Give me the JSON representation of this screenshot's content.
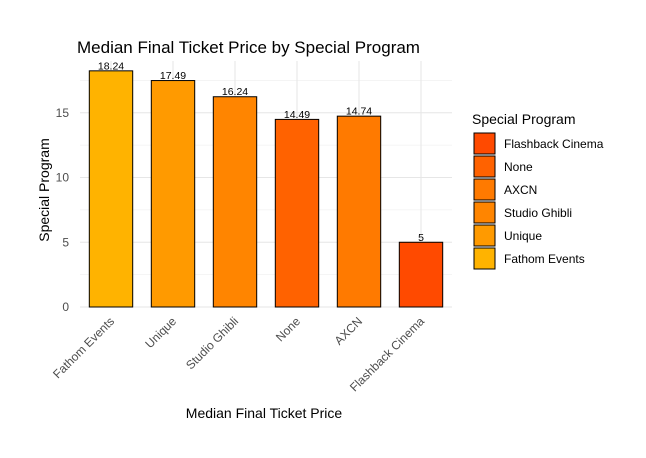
{
  "chart_data": {
    "type": "bar",
    "title": "Median Final Ticket Price by Special Program",
    "xlabel": "Median Final Ticket Price",
    "ylabel": "Special Program",
    "categories": [
      "Fathom Events",
      "Unique",
      "Studio Ghibli",
      "None",
      "AXCN",
      "Flashback Cinema"
    ],
    "values": [
      18.24,
      17.49,
      16.24,
      14.49,
      14.74,
      5
    ],
    "data_labels": [
      "18.24",
      "17.49",
      "16.24",
      "14.49",
      "14.74",
      "5"
    ],
    "colors": [
      "#FFB300",
      "#FF9A00",
      "#FF8500",
      "#FF6200",
      "#FF7A00",
      "#FF4A00"
    ],
    "yticks": [
      0,
      5,
      10,
      15
    ],
    "ylim": [
      0,
      19
    ],
    "grid": true,
    "legend": {
      "title": "Special Program",
      "position": "right",
      "entries": [
        {
          "label": "Flashback Cinema",
          "color": "#FF4A00"
        },
        {
          "label": "None",
          "color": "#FF6200"
        },
        {
          "label": "AXCN",
          "color": "#FF7A00"
        },
        {
          "label": "Studio Ghibli",
          "color": "#FF8500"
        },
        {
          "label": "Unique",
          "color": "#FF9A00"
        },
        {
          "label": "Fathom Events",
          "color": "#FFB300"
        }
      ]
    }
  }
}
